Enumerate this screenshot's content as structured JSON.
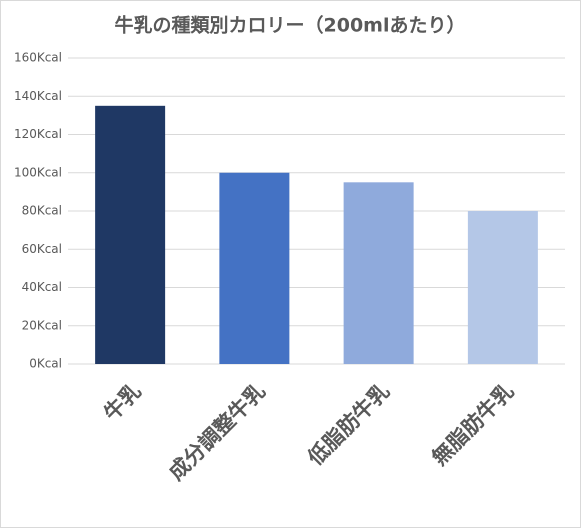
{
  "chart_data": {
    "type": "bar",
    "title": "牛乳の種類別カロリー（200mlあたり）",
    "categories": [
      "牛乳",
      "成分調整牛乳",
      "低脂肪牛乳",
      "無脂肪牛乳"
    ],
    "values": [
      135,
      100,
      95,
      80
    ],
    "colors": [
      "#1f3864",
      "#4472c4",
      "#8faadc",
      "#b4c7e7"
    ],
    "ylim": [
      0,
      160
    ],
    "yticks": [
      {
        "value": 0,
        "label": "0Kcal"
      },
      {
        "value": 20,
        "label": "20Kcal"
      },
      {
        "value": 40,
        "label": "40Kcal"
      },
      {
        "value": 60,
        "label": "60Kcal"
      },
      {
        "value": 80,
        "label": "80Kcal"
      },
      {
        "value": 100,
        "label": "100Kcal"
      },
      {
        "value": 120,
        "label": "120Kcal"
      },
      {
        "value": 140,
        "label": "140Kcal"
      },
      {
        "value": 160,
        "label": "160Kcal"
      }
    ],
    "grid": true
  }
}
